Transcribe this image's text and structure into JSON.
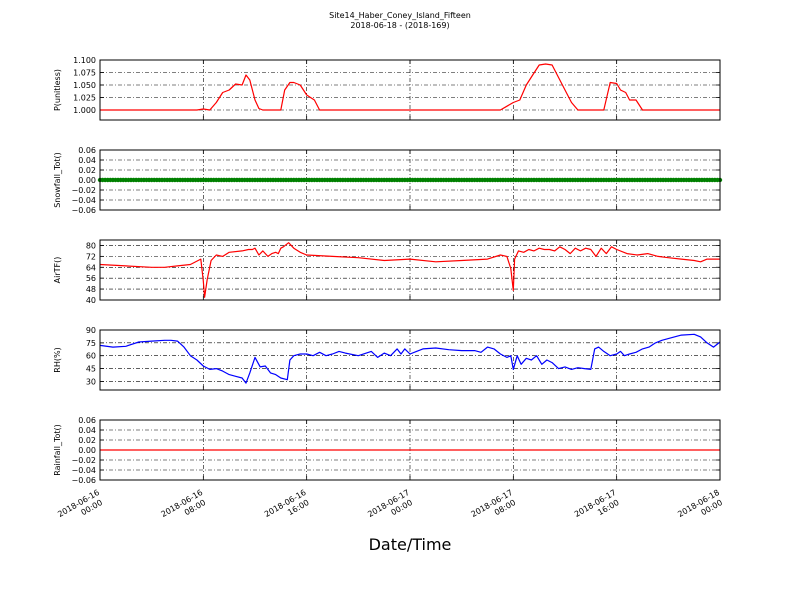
{
  "figure": {
    "title": "Site14_Haber_Coney_Island_Fifteen",
    "subtitle": "2018-06-18 - (2018-169)",
    "xlabel": "Date/Time",
    "x_ticks": [
      {
        "t": 0,
        "l1": "2018-06-16",
        "l2": "00:00"
      },
      {
        "t": 8,
        "l1": "2018-06-16",
        "l2": "08:00"
      },
      {
        "t": 16,
        "l1": "2018-06-16",
        "l2": "16:00"
      },
      {
        "t": 24,
        "l1": "2018-06-17",
        "l2": "00:00"
      },
      {
        "t": 32,
        "l1": "2018-06-17",
        "l2": "08:00"
      },
      {
        "t": 40,
        "l1": "2018-06-17",
        "l2": "16:00"
      },
      {
        "t": 48,
        "l1": "2018-06-18",
        "l2": "00:00"
      }
    ]
  },
  "chart_data": [
    {
      "type": "line",
      "ylabel": "P(unitless)",
      "ylim": [
        0.98,
        1.1
      ],
      "yticks": [
        "1.000",
        "1.025",
        "1.050",
        "1.075",
        "1.100"
      ],
      "ytick_values": [
        1.0,
        1.025,
        1.05,
        1.075,
        1.1
      ],
      "grid": true,
      "color": "#ff0000",
      "marker": "line",
      "x": [
        0,
        7.5,
        8,
        8.5,
        9,
        9.5,
        10,
        10.5,
        11,
        11.3,
        11.6,
        12,
        12.3,
        12.6,
        13,
        14,
        14.3,
        14.7,
        15,
        15.5,
        16,
        16.3,
        16.6,
        17,
        18,
        24,
        31,
        32,
        32.5,
        33,
        33.5,
        34,
        34.5,
        35,
        36,
        36.5,
        37,
        37.5,
        38,
        39,
        39.5,
        40,
        40.3,
        40.7,
        41,
        41.5,
        42,
        48
      ],
      "y": [
        1.0,
        1.0,
        1.002,
        1.0,
        1.015,
        1.035,
        1.04,
        1.052,
        1.05,
        1.07,
        1.06,
        1.02,
        1.003,
        1.0,
        1.0,
        1.0,
        1.04,
        1.055,
        1.055,
        1.05,
        1.03,
        1.025,
        1.02,
        1.0,
        1.0,
        1.0,
        1.0,
        1.015,
        1.02,
        1.05,
        1.07,
        1.09,
        1.092,
        1.09,
        1.04,
        1.015,
        1.0,
        1.0,
        1.0,
        1.0,
        1.055,
        1.053,
        1.04,
        1.035,
        1.02,
        1.02,
        1.0,
        1.0
      ]
    },
    {
      "type": "scatter",
      "ylabel": "Snowfall_Tot()",
      "ylim": [
        -0.06,
        0.06
      ],
      "yticks": [
        "−0.06",
        "−0.04",
        "−0.02",
        "0.00",
        "0.02",
        "0.04",
        "0.06"
      ],
      "ytick_values": [
        -0.06,
        -0.04,
        -0.02,
        0,
        0.02,
        0.04,
        0.06
      ],
      "grid": true,
      "color": "#008000",
      "marker": "dot",
      "constant": 0
    },
    {
      "type": "line",
      "ylabel": "AirTF()",
      "ylim": [
        40,
        84
      ],
      "yticks": [
        "40",
        "48",
        "56",
        "64",
        "72",
        "80"
      ],
      "ytick_values": [
        40,
        48,
        56,
        64,
        72,
        80
      ],
      "grid": true,
      "color": "#ff0000",
      "marker": "line",
      "x": [
        0,
        2,
        4,
        5,
        6,
        7,
        7.8,
        8,
        8.1,
        8.3,
        8.6,
        9,
        9.5,
        10,
        11,
        11.5,
        11.8,
        12,
        12.3,
        12.6,
        13,
        13.3,
        13.6,
        13.8,
        14,
        14.2,
        14.6,
        15,
        15.5,
        16,
        18,
        20,
        22,
        24,
        26,
        28,
        30,
        31,
        31.5,
        31.8,
        32,
        32.1,
        32.4,
        32.8,
        33.2,
        33.6,
        34,
        34.4,
        34.8,
        35.2,
        35.6,
        36,
        36.4,
        36.8,
        37.2,
        37.6,
        38,
        38.4,
        38.8,
        39.2,
        39.6,
        40,
        40.8,
        41.6,
        42.4,
        43.2,
        44,
        45,
        46,
        46.5,
        47,
        48
      ],
      "y": [
        66,
        65,
        64,
        64,
        65,
        66,
        70,
        54,
        42,
        55,
        69,
        73,
        72,
        75,
        76,
        77,
        77,
        78,
        73,
        76,
        72,
        74,
        75,
        74,
        78,
        79,
        82,
        78,
        75,
        73,
        72,
        71,
        69,
        70,
        68,
        69,
        70,
        73,
        72,
        63,
        47,
        70,
        76,
        75,
        77,
        76,
        78,
        77,
        77,
        76,
        79,
        77,
        74,
        78,
        76,
        78,
        77,
        72,
        78,
        74,
        79,
        77,
        74,
        73,
        74,
        72,
        71,
        70,
        69,
        68,
        70,
        70
      ]
    },
    {
      "type": "line",
      "ylabel": "RH(%)",
      "ylim": [
        20,
        90
      ],
      "yticks": [
        "30",
        "45",
        "60",
        "75",
        "90"
      ],
      "ytick_values": [
        30,
        45,
        60,
        75,
        90
      ],
      "grid": true,
      "color": "#0000ff",
      "marker": "line",
      "x": [
        0,
        1,
        2,
        3,
        4,
        5,
        5.5,
        6,
        6.5,
        7,
        7.5,
        8,
        8.5,
        9,
        9.5,
        10,
        10.5,
        11,
        11.3,
        11.6,
        12,
        12.4,
        12.8,
        13.2,
        13.6,
        14,
        14.5,
        14.7,
        15,
        15.5,
        16,
        16.5,
        17,
        17.5,
        18,
        18.5,
        19,
        20,
        21,
        21.5,
        22,
        22.5,
        23,
        23.3,
        23.6,
        24,
        24.5,
        25,
        26,
        27,
        28,
        29,
        29.5,
        30,
        30.5,
        31,
        31.5,
        31.8,
        32,
        32.3,
        32.6,
        33,
        33.4,
        33.8,
        34.2,
        34.6,
        35,
        35.5,
        36,
        36.5,
        37,
        37.5,
        38,
        38.3,
        38.6,
        39,
        39.5,
        40,
        40.3,
        40.6,
        41,
        41.5,
        42,
        42.5,
        43,
        43.5,
        44,
        45,
        46,
        46.5,
        47,
        47.5,
        48
      ],
      "y": [
        72,
        70,
        71,
        76,
        77,
        78,
        78,
        77,
        70,
        60,
        55,
        48,
        44,
        45,
        42,
        38,
        36,
        34,
        28,
        40,
        58,
        47,
        48,
        40,
        38,
        34,
        32,
        55,
        60,
        62,
        62,
        60,
        64,
        60,
        62,
        65,
        63,
        60,
        65,
        58,
        63,
        60,
        68,
        62,
        68,
        62,
        65,
        68,
        69,
        67,
        66,
        66,
        64,
        70,
        68,
        62,
        58,
        60,
        44,
        60,
        50,
        57,
        55,
        60,
        50,
        55,
        52,
        45,
        47,
        44,
        46,
        45,
        44,
        68,
        70,
        65,
        60,
        62,
        65,
        60,
        62,
        64,
        68,
        70,
        75,
        78,
        80,
        84,
        85,
        82,
        75,
        70,
        76
      ]
    },
    {
      "type": "line",
      "ylabel": "Rainfall_Tot()",
      "ylim": [
        -0.06,
        0.06
      ],
      "yticks": [
        "−0.06",
        "−0.04",
        "−0.02",
        "0.00",
        "0.02",
        "0.04",
        "0.06"
      ],
      "ytick_values": [
        -0.06,
        -0.04,
        -0.02,
        0,
        0.02,
        0.04,
        0.06
      ],
      "grid": true,
      "color": "#ff0000",
      "marker": "line",
      "constant": 0
    }
  ]
}
